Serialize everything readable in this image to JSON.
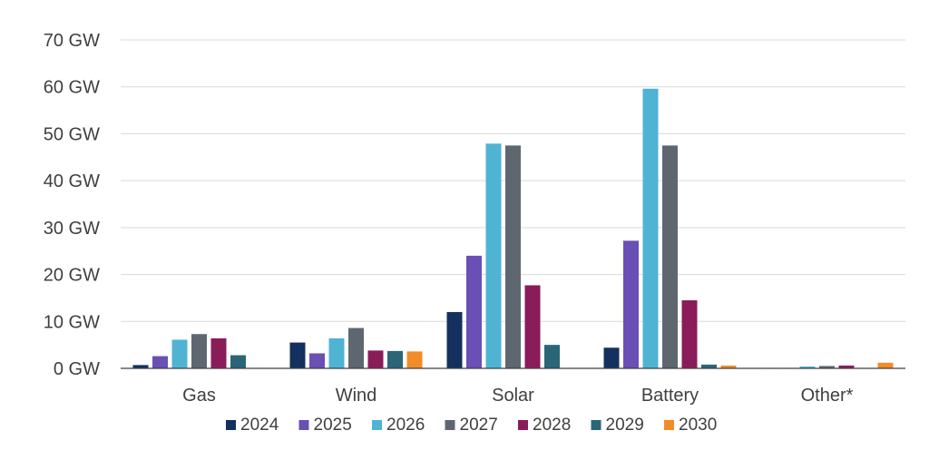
{
  "chart_data": {
    "type": "bar",
    "title": "",
    "xlabel": "",
    "ylabel": "",
    "ylim": [
      0,
      70
    ],
    "y_ticks": [
      {
        "value": 0,
        "label": "0 GW"
      },
      {
        "value": 10,
        "label": "10 GW"
      },
      {
        "value": 20,
        "label": "20 GW"
      },
      {
        "value": 30,
        "label": "30 GW"
      },
      {
        "value": 40,
        "label": "40 GW"
      },
      {
        "value": 50,
        "label": "50 GW"
      },
      {
        "value": 60,
        "label": "60 GW"
      },
      {
        "value": 70,
        "label": "70 GW"
      }
    ],
    "grid": true,
    "legend_position": "bottom",
    "categories": [
      "Gas",
      "Wind",
      "Solar",
      "Battery",
      "Other*"
    ],
    "series": [
      {
        "name": "2024",
        "color": "#14305e",
        "values": [
          0.7,
          5.5,
          12.0,
          4.4,
          0.1
        ]
      },
      {
        "name": "2025",
        "color": "#6a4fb5",
        "values": [
          2.6,
          3.2,
          24.0,
          27.2,
          0.1
        ]
      },
      {
        "name": "2026",
        "color": "#4fb3d4",
        "values": [
          6.1,
          6.4,
          47.9,
          59.6,
          0.4
        ]
      },
      {
        "name": "2027",
        "color": "#5e6770",
        "values": [
          7.3,
          8.6,
          47.5,
          47.5,
          0.5
        ]
      },
      {
        "name": "2028",
        "color": "#8a1c5a",
        "values": [
          6.4,
          3.8,
          17.7,
          14.5,
          0.6
        ]
      },
      {
        "name": "2029",
        "color": "#2a6678",
        "values": [
          2.8,
          3.7,
          5.0,
          0.8,
          0.0
        ]
      },
      {
        "name": "2030",
        "color": "#f28c28",
        "values": [
          0.0,
          3.6,
          0.0,
          0.6,
          1.2
        ]
      }
    ]
  }
}
